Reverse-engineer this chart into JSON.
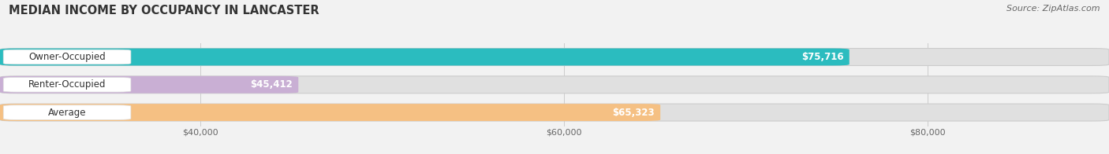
{
  "title": "MEDIAN INCOME BY OCCUPANCY IN LANCASTER",
  "source": "Source: ZipAtlas.com",
  "categories": [
    "Owner-Occupied",
    "Renter-Occupied",
    "Average"
  ],
  "values": [
    75716,
    45412,
    65323
  ],
  "labels": [
    "$75,716",
    "$45,412",
    "$65,323"
  ],
  "bar_colors": [
    "#2bbcbf",
    "#c9afd4",
    "#f5c083"
  ],
  "xlim_min": 29000,
  "xlim_max": 90000,
  "xticks": [
    40000,
    60000,
    80000
  ],
  "xticklabels": [
    "$40,000",
    "$60,000",
    "$80,000"
  ],
  "title_fontsize": 10.5,
  "source_fontsize": 8,
  "tick_fontsize": 8,
  "label_fontsize": 8.5,
  "value_fontsize": 8.5,
  "bar_height": 0.62,
  "background_color": "#f2f2f2",
  "bar_bg_color": "#e0e0e0",
  "bar_bg_edge": "#cccccc",
  "label_bg_color": "#ffffff",
  "value_label_color": "#ffffff",
  "category_label_color": "#333333",
  "grid_color": "#cccccc",
  "title_color": "#333333",
  "source_color": "#666666",
  "tick_color": "#666666"
}
